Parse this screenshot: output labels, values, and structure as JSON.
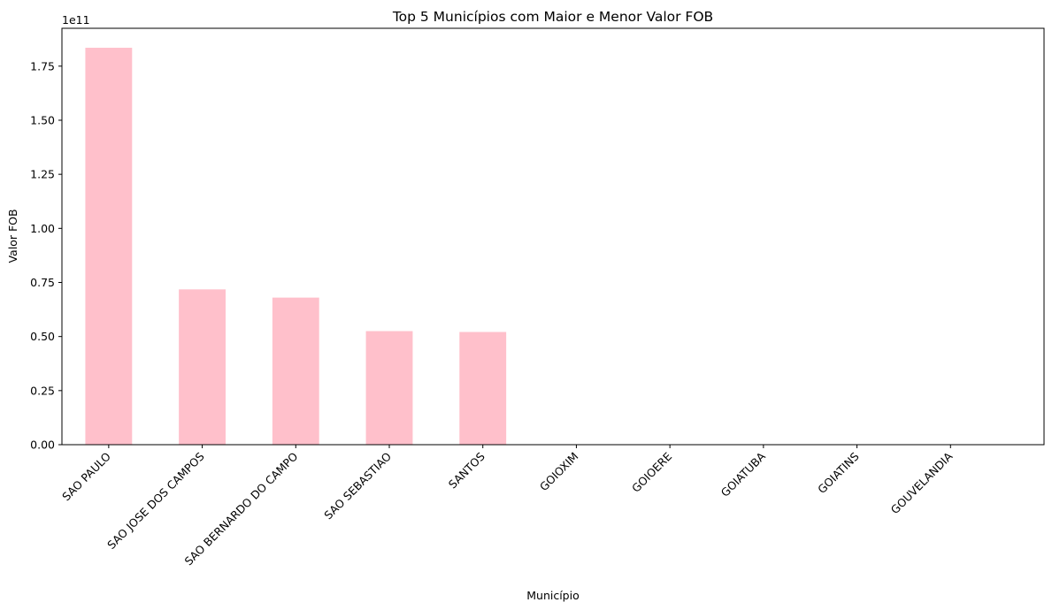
{
  "chart_data": {
    "type": "bar",
    "title": "Top 5 Municípios com Maior e Menor Valor FOB",
    "xlabel": "Município",
    "ylabel": "Valor FOB",
    "y_offset_label": "1e11",
    "categories": [
      "SAO PAULO",
      "SAO JOSE DOS CAMPOS",
      "SAO BERNARDO DO CAMPO",
      "SAO SEBASTIAO",
      "SANTOS",
      "GOIOXIM",
      "GOIOERE",
      "GOIATUBA",
      "GOIATINS",
      "GOUVELANDIA"
    ],
    "values": [
      1.835,
      0.718,
      0.68,
      0.525,
      0.521,
      0.0,
      0.0,
      0.0,
      0.0,
      0.0
    ],
    "value_scale": 100000000000,
    "ylim": [
      0,
      1.925
    ],
    "yticks": [
      0.0,
      0.25,
      0.5,
      0.75,
      1.0,
      1.25,
      1.5,
      1.75
    ],
    "ytick_labels": [
      "0.00",
      "0.25",
      "0.50",
      "0.75",
      "1.00",
      "1.25",
      "1.50",
      "1.75"
    ],
    "bar_color": "#ffc0cb",
    "grid": false,
    "legend": "none"
  }
}
